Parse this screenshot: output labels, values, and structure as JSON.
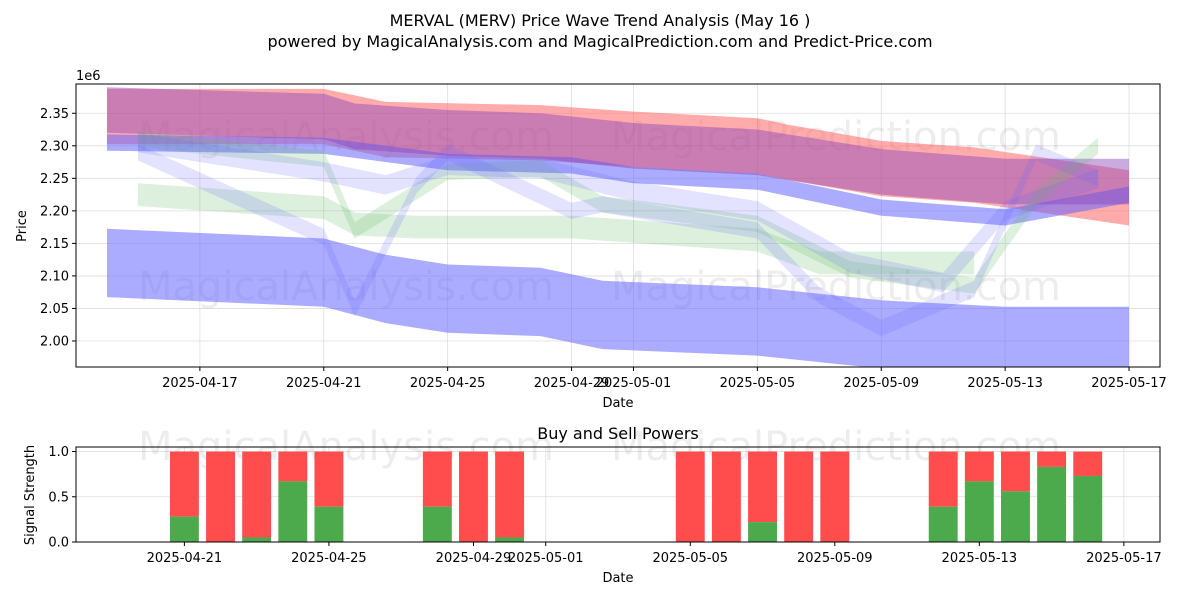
{
  "title": "MERVAL (MERV) Price Wave Trend Analysis (May 16 )",
  "subtitle": "powered by MagicalAnalysis.com and MagicalPrediction.com and Predict-Price.com",
  "watermarks": [
    "MagicalAnalysis.com",
    "MagicalPrediction.com"
  ],
  "chart_data": [
    {
      "type": "area",
      "xlabel": "Date",
      "ylabel": "Price",
      "scale_note": "1e6",
      "grid": true,
      "xlim": [
        "2025-04-13",
        "2025-05-18"
      ],
      "ylim": [
        1.96,
        2.395
      ],
      "x_ticks": [
        "2025-04-17",
        "2025-04-21",
        "2025-04-25",
        "2025-04-29",
        "2025-05-01",
        "2025-05-05",
        "2025-05-09",
        "2025-05-13",
        "2025-05-17"
      ],
      "y_ticks": [
        "2.00",
        "2.05",
        "2.10",
        "2.15",
        "2.20",
        "2.25",
        "2.30",
        "2.35"
      ],
      "colors": {
        "red": "#ff6666",
        "blue": "#6666ff",
        "green": "#66bb66",
        "purple": "#8844bb"
      },
      "bands": [
        {
          "color": "red",
          "opacity": 0.55,
          "x": [
            "2025-04-14",
            "2025-04-21",
            "2025-04-22",
            "2025-04-23",
            "2025-04-28",
            "2025-05-01",
            "2025-05-05",
            "2025-05-06",
            "2025-05-09",
            "2025-05-12",
            "2025-05-17"
          ],
          "y": [
            2.345,
            2.345,
            2.335,
            2.325,
            2.32,
            2.31,
            2.3,
            2.29,
            2.265,
            2.255,
            2.22
          ],
          "width": 0.085
        },
        {
          "color": "blue",
          "opacity": 0.55,
          "x": [
            "2025-04-14",
            "2025-04-21",
            "2025-04-25",
            "2025-04-29",
            "2025-05-01",
            "2025-05-05",
            "2025-05-09",
            "2025-05-13",
            "2025-05-17"
          ],
          "y": [
            2.305,
            2.3,
            2.275,
            2.27,
            2.255,
            2.245,
            2.205,
            2.19,
            2.225
          ],
          "width": 0.025
        },
        {
          "color": "blue",
          "opacity": 0.55,
          "x": [
            "2025-04-14",
            "2025-04-21",
            "2025-04-23",
            "2025-04-25",
            "2025-04-28",
            "2025-04-30",
            "2025-05-05",
            "2025-05-09",
            "2025-05-13",
            "2025-05-17"
          ],
          "y": [
            2.12,
            2.105,
            2.08,
            2.065,
            2.06,
            2.04,
            2.03,
            2.01,
            2.0,
            2.0
          ],
          "width": 0.105
        },
        {
          "color": "purple",
          "opacity": 0.45,
          "x": [
            "2025-04-14",
            "2025-04-21",
            "2025-04-22",
            "2025-04-25",
            "2025-04-28",
            "2025-05-01",
            "2025-05-05",
            "2025-05-09",
            "2025-05-13",
            "2025-05-17"
          ],
          "y": [
            2.355,
            2.345,
            2.33,
            2.32,
            2.315,
            2.3,
            2.29,
            2.26,
            2.245,
            2.245
          ],
          "width": 0.07
        },
        {
          "color": "green",
          "opacity": 0.22,
          "x": [
            "2025-04-15",
            "2025-04-21",
            "2025-04-22",
            "2025-04-24",
            "2025-04-29",
            "2025-05-05",
            "2025-05-07",
            "2025-05-09",
            "2025-05-12"
          ],
          "y": [
            2.225,
            2.205,
            2.18,
            2.175,
            2.175,
            2.155,
            2.12,
            2.12,
            2.12
          ],
          "width": 0.035
        },
        {
          "color": "green",
          "opacity": 0.22,
          "x": [
            "2025-04-15",
            "2025-04-21",
            "2025-04-22",
            "2025-04-25",
            "2025-04-28",
            "2025-04-30",
            "2025-05-05",
            "2025-05-08",
            "2025-05-12",
            "2025-05-14",
            "2025-05-16"
          ],
          "y": [
            2.31,
            2.28,
            2.17,
            2.26,
            2.265,
            2.21,
            2.18,
            2.11,
            2.085,
            2.22,
            2.3
          ],
          "width": 0.025
        },
        {
          "color": "blue",
          "opacity": 0.18,
          "x": [
            "2025-04-15",
            "2025-04-21",
            "2025-04-22",
            "2025-04-24",
            "2025-04-25",
            "2025-04-29",
            "2025-04-30",
            "2025-05-05",
            "2025-05-07",
            "2025-05-09",
            "2025-05-12",
            "2025-05-14",
            "2025-05-16"
          ],
          "y": [
            2.29,
            2.16,
            2.05,
            2.24,
            2.29,
            2.2,
            2.21,
            2.17,
            2.07,
            2.02,
            2.08,
            2.29,
            2.25
          ],
          "width": 0.025
        },
        {
          "color": "blue",
          "opacity": 0.18,
          "x": [
            "2025-04-15",
            "2025-04-21",
            "2025-04-23",
            "2025-04-25",
            "2025-04-28",
            "2025-05-01",
            "2025-05-05",
            "2025-05-08",
            "2025-05-11",
            "2025-05-13",
            "2025-05-16"
          ],
          "y": [
            2.305,
            2.26,
            2.24,
            2.27,
            2.265,
            2.23,
            2.2,
            2.12,
            2.09,
            2.2,
            2.25
          ],
          "width": 0.03
        }
      ]
    },
    {
      "type": "bar",
      "title": "Buy and Sell Powers",
      "xlabel": "Date",
      "ylabel": "Signal Strength",
      "grid": true,
      "xlim": [
        "2025-04-18",
        "2025-05-18"
      ],
      "ylim": [
        0,
        1.05
      ],
      "x_ticks": [
        "2025-04-21",
        "2025-04-25",
        "2025-04-29",
        "2025-05-01",
        "2025-05-05",
        "2025-05-09",
        "2025-05-13",
        "2025-05-17"
      ],
      "y_ticks": [
        "0.0",
        "0.5",
        "1.0"
      ],
      "colors": {
        "buy": "#4caa4c",
        "sell": "#ff4c4c"
      },
      "dates": [
        "2025-04-21",
        "2025-04-22",
        "2025-04-23",
        "2025-04-24",
        "2025-04-25",
        "2025-04-28",
        "2025-04-29",
        "2025-04-30",
        "2025-05-05",
        "2025-05-06",
        "2025-05-07",
        "2025-05-08",
        "2025-05-09",
        "2025-05-12",
        "2025-05-13",
        "2025-05-14",
        "2025-05-15",
        "2025-05-16"
      ],
      "buy": [
        0.28,
        0.0,
        0.05,
        0.67,
        0.39,
        0.39,
        0.0,
        0.05,
        0.0,
        0.0,
        0.22,
        0.0,
        0.0,
        0.39,
        0.67,
        0.56,
        0.83,
        0.73
      ],
      "total": [
        1.0,
        1.0,
        1.0,
        1.0,
        1.0,
        1.0,
        1.0,
        1.0,
        1.0,
        1.0,
        1.0,
        1.0,
        1.0,
        1.0,
        1.0,
        1.0,
        1.0,
        1.0
      ]
    }
  ]
}
